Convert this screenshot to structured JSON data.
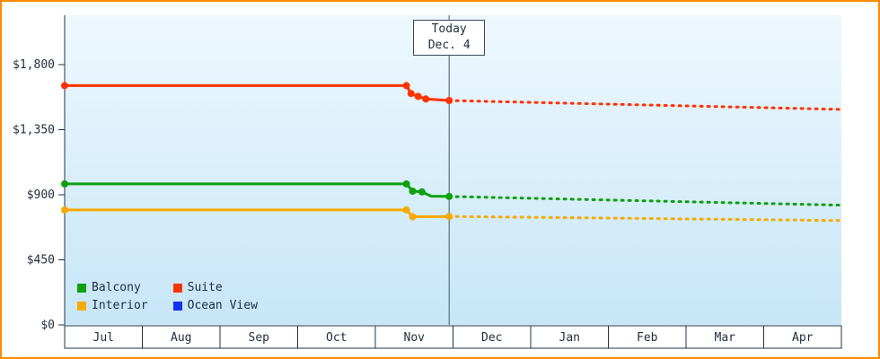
{
  "frame": {
    "border_color": "#ff8a00",
    "background": "#ffffff"
  },
  "chart_data": {
    "type": "line",
    "title": "",
    "colors": {
      "plot_bg_top": "#eef8fe",
      "plot_bg_bottom": "#c7e6f8",
      "axis": "#223344",
      "text": "#1e2d3d",
      "today_line": "#44576b",
      "today_box_border": "#36485c"
    },
    "x_axis": {
      "labels": [
        "Jul",
        "Aug",
        "Sep",
        "Oct",
        "Nov",
        "Dec",
        "Jan",
        "Feb",
        "Mar",
        "Apr"
      ]
    },
    "y_axis": {
      "min": 0,
      "label_max": 1800,
      "ticks": [
        {
          "label": "$0",
          "value": 0
        },
        {
          "label": "$450",
          "value": 450
        },
        {
          "label": "$900",
          "value": 900
        },
        {
          "label": "$1,350",
          "value": 1350
        },
        {
          "label": "$1,800",
          "value": 1800
        }
      ]
    },
    "today": {
      "label": "Today",
      "date": "Dec. 4",
      "x_month_units": 4.95
    },
    "series": [
      {
        "name": "Balcony",
        "color": "#0da00d",
        "solid": [
          [
            0,
            975
          ],
          [
            4.4,
            975
          ],
          [
            4.48,
            925
          ],
          [
            4.6,
            920
          ],
          [
            4.72,
            890
          ],
          [
            4.95,
            888
          ]
        ],
        "dotted": [
          [
            4.95,
            888
          ],
          [
            10,
            828
          ]
        ],
        "markers": [
          [
            0,
            975
          ],
          [
            4.4,
            975
          ],
          [
            4.48,
            925
          ],
          [
            4.6,
            920
          ],
          [
            4.95,
            888
          ]
        ]
      },
      {
        "name": "Suite",
        "color": "#ff3300",
        "solid": [
          [
            0,
            1655
          ],
          [
            4.4,
            1655
          ],
          [
            4.46,
            1600
          ],
          [
            4.55,
            1580
          ],
          [
            4.65,
            1562
          ],
          [
            4.95,
            1552
          ]
        ],
        "dotted": [
          [
            4.95,
            1552
          ],
          [
            10,
            1490
          ]
        ],
        "markers": [
          [
            0,
            1655
          ],
          [
            4.4,
            1655
          ],
          [
            4.46,
            1600
          ],
          [
            4.55,
            1580
          ],
          [
            4.65,
            1562
          ],
          [
            4.95,
            1552
          ]
        ]
      },
      {
        "name": "Interior",
        "color": "#f8a800",
        "solid": [
          [
            0,
            795
          ],
          [
            4.4,
            795
          ],
          [
            4.48,
            748
          ],
          [
            4.95,
            750
          ]
        ],
        "dotted": [
          [
            4.95,
            750
          ],
          [
            10,
            722
          ]
        ],
        "markers": [
          [
            0,
            795
          ],
          [
            4.4,
            795
          ],
          [
            4.48,
            748
          ],
          [
            4.95,
            750
          ]
        ]
      },
      {
        "name": "Ocean View",
        "color": "#1133ee",
        "solid": [],
        "dotted": [],
        "markers": []
      }
    ],
    "legend": {
      "items": [
        {
          "label": "Balcony",
          "color": "#0da00d"
        },
        {
          "label": "Suite",
          "color": "#ff3300"
        },
        {
          "label": "Interior",
          "color": "#f8a800"
        },
        {
          "label": "Ocean View",
          "color": "#1133ee"
        }
      ]
    }
  }
}
